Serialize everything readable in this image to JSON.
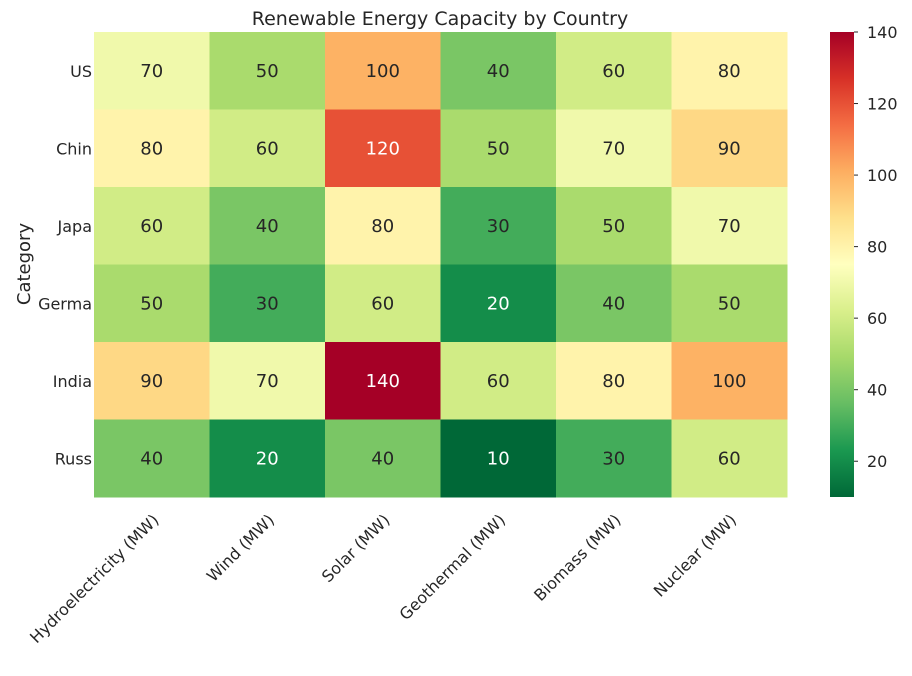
{
  "chart_data": {
    "type": "heatmap",
    "title": "Renewable Energy Capacity by Country",
    "ylabel": "Category",
    "xlabel": "",
    "rows": [
      "US",
      "Chin",
      "Japa",
      "Germa",
      "India",
      "Russ"
    ],
    "columns": [
      "Hydroelectricity (MW)",
      "Wind (MW)",
      "Solar (MW)",
      "Geothermal (MW)",
      "Biomass (MW)",
      "Nuclear (MW)"
    ],
    "values": [
      [
        70,
        50,
        100,
        40,
        60,
        80
      ],
      [
        80,
        60,
        120,
        50,
        70,
        90
      ],
      [
        60,
        40,
        80,
        30,
        50,
        70
      ],
      [
        50,
        30,
        60,
        20,
        40,
        50
      ],
      [
        90,
        70,
        140,
        60,
        80,
        100
      ],
      [
        40,
        20,
        40,
        10,
        30,
        60
      ]
    ],
    "colormap": "RdYlGn_r",
    "vmin": 10,
    "vmax": 140,
    "colorbar_ticks": [
      20,
      40,
      60,
      80,
      100,
      120,
      140
    ],
    "annotations": true
  }
}
